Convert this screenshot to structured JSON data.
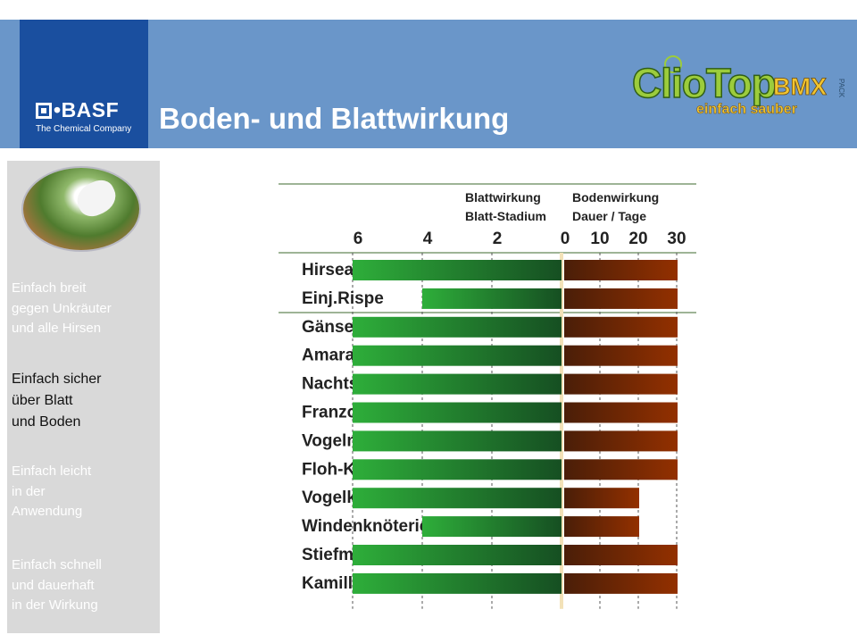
{
  "header": {
    "title": "Boden- und Blattwirkung",
    "company": {
      "name": "BASF",
      "subtitle": "The Chemical Company"
    },
    "product": {
      "name": "ClioTop",
      "suffix": "BMX",
      "pack": "PACK",
      "tagline": "einfach sauber"
    },
    "colors": {
      "band": "#6a96c9",
      "company_box": "#1a4f9f"
    }
  },
  "sidebar": {
    "photo": "corn-seedlings-gloved-hand-photo",
    "items": [
      {
        "label": "Einfach breit\ngegen Unkräuter\nund alle Hirsen",
        "active": false
      },
      {
        "label": "Einfach sicher\nüber Blatt\nund Boden",
        "active": true
      },
      {
        "label": "Einfach leicht\nin der\nAnwendung",
        "active": false
      },
      {
        "label": "Einfach schnell\nund dauerhaft\nin der Wirkung",
        "active": false
      }
    ]
  },
  "chart_data": {
    "type": "bar",
    "subtype": "diverging-horizontal",
    "left_header": [
      "Blattwirkung",
      "Blatt-Stadium"
    ],
    "right_header": [
      "Bodenwirkung",
      "Dauer / Tage"
    ],
    "left_ticks": [
      "6",
      "4",
      "2"
    ],
    "zero_label": "0",
    "right_ticks": [
      "10",
      "20",
      "30"
    ],
    "left_range": [
      0,
      6
    ],
    "right_range": [
      0,
      30
    ],
    "categories": [
      "Hirsearten",
      "Einj.Rispe",
      "Gänsefuß/Melde",
      "Amarant-Arten",
      "Nachtschatten",
      "Franzosenkraut",
      "Vogelmiere",
      "Floh-Knöterich",
      "Vogelknöterich",
      "Windenknöterich",
      "Stiefmütterchen",
      "Kamille-Arten"
    ],
    "series": [
      {
        "name": "Blattwirkung",
        "values": [
          6,
          4,
          6,
          6,
          6,
          6,
          6,
          6,
          6,
          4,
          6,
          6
        ],
        "colors": [
          "#2eae3a",
          "#164f22"
        ]
      },
      {
        "name": "Bodenwirkung",
        "values": [
          30,
          30,
          30,
          30,
          30,
          30,
          30,
          30,
          20,
          20,
          30,
          30
        ],
        "colors": [
          "#4a1e08",
          "#933000"
        ]
      }
    ],
    "grid": true
  }
}
